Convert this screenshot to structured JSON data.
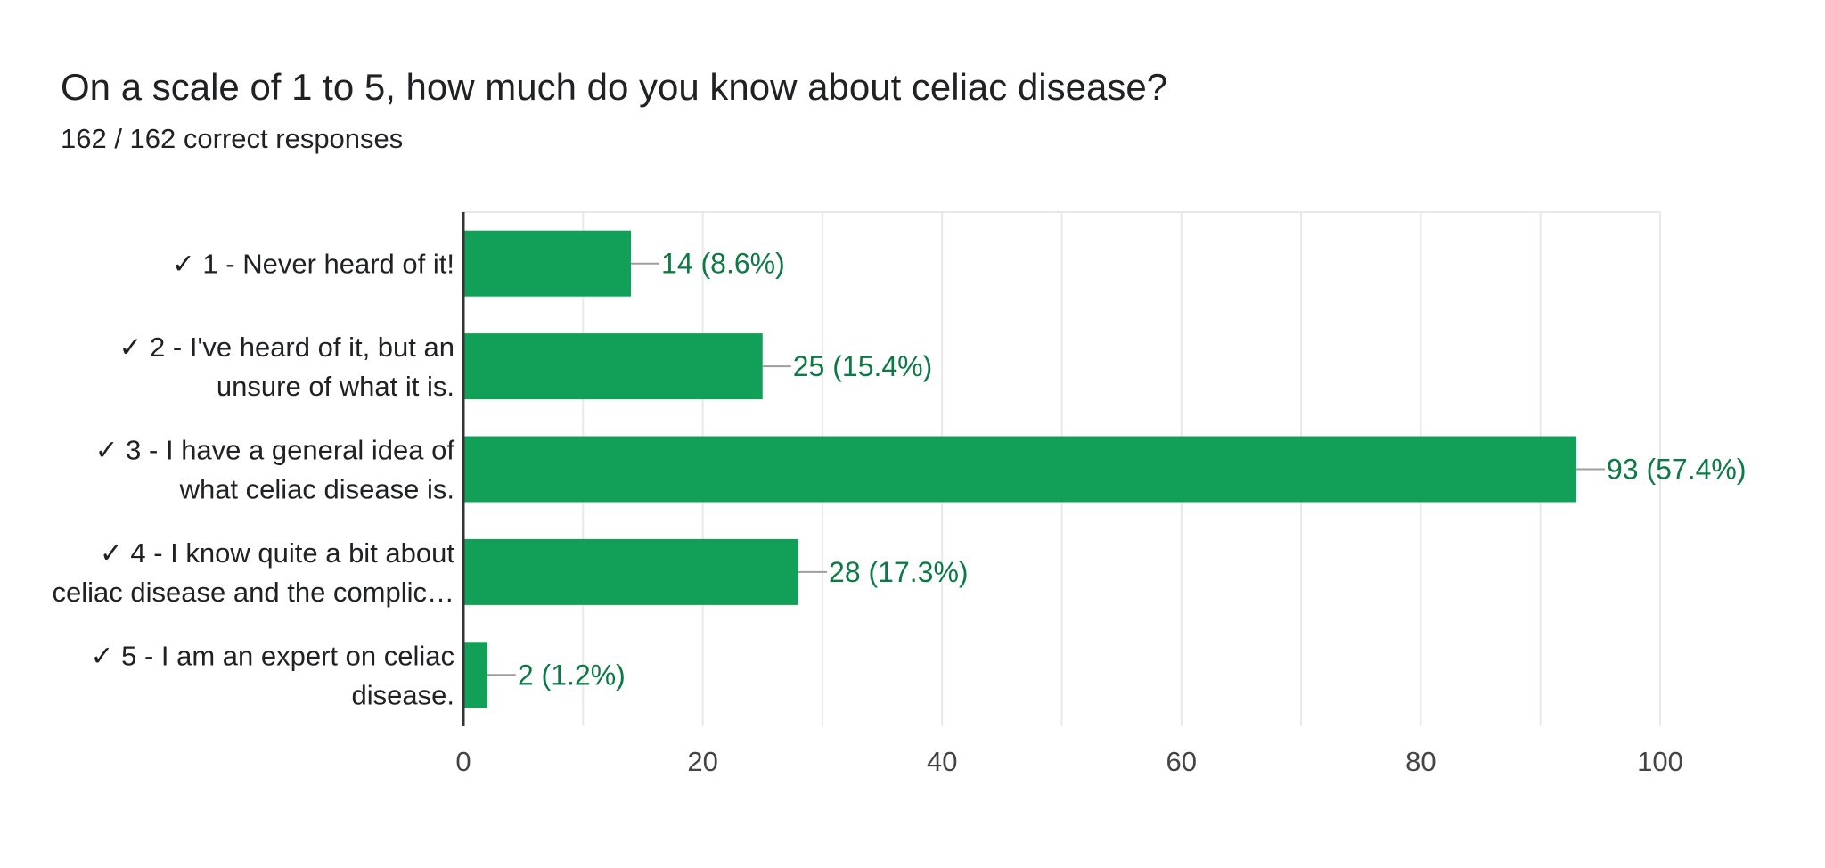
{
  "header": {
    "title": "On a scale of 1 to 5, how much do you know about celiac disease?",
    "subtitle": "162 / 162 correct responses"
  },
  "colors": {
    "bar": "#12a058",
    "data_label": "#0d7a45",
    "gridline": "#e8e8e8",
    "axis": "#333333",
    "leader": "#9e9e9e"
  },
  "chart_data": {
    "type": "bar",
    "orientation": "horizontal",
    "title": "On a scale of 1 to 5, how much do you know about celiac disease?",
    "subtitle": "162 / 162 correct responses",
    "check_mark": "✓",
    "categories": [
      {
        "lines": [
          "1 - Never heard of it!"
        ]
      },
      {
        "lines": [
          "2 - I've heard of it, but an",
          "unsure of what it is."
        ]
      },
      {
        "lines": [
          "3 - I have a general idea of",
          "what celiac disease is."
        ]
      },
      {
        "lines": [
          "4 - I know quite a bit about",
          "celiac disease and the complic…"
        ]
      },
      {
        "lines": [
          "5 - I am an expert on celiac",
          "disease."
        ]
      }
    ],
    "values": [
      14,
      25,
      93,
      28,
      2
    ],
    "data_labels": [
      "14 (8.6%)",
      "25 (15.4%)",
      "93 (57.4%)",
      "28 (17.3%)",
      "2 (1.2%)"
    ],
    "xlim": [
      0,
      100
    ],
    "xticks": [
      0,
      20,
      40,
      60,
      80,
      100
    ],
    "xtick_labels": [
      "0",
      "20",
      "40",
      "60",
      "80",
      "100"
    ],
    "minor_gridlines_every": 10,
    "xlabel": "",
    "ylabel": "",
    "legend": "none"
  }
}
